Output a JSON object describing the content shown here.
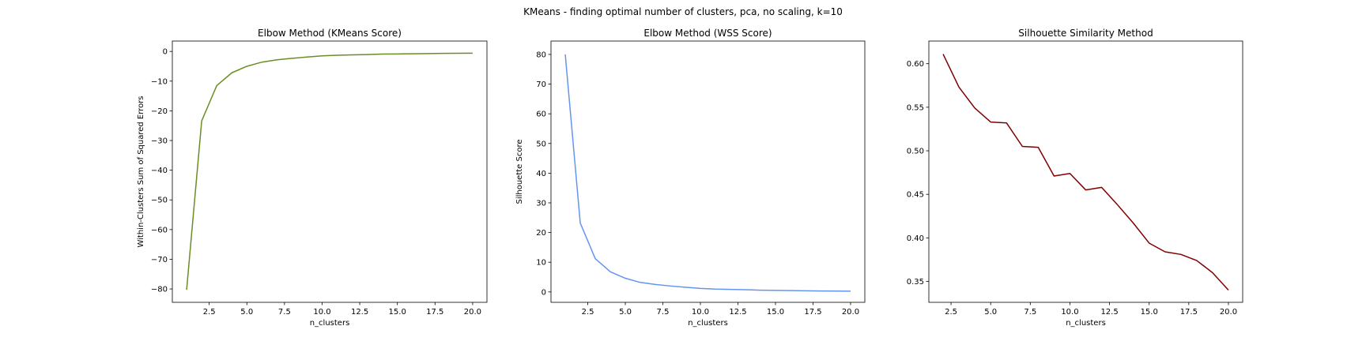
{
  "figure": {
    "suptitle": "KMeans - finding optimal number of clusters, pca, no scaling, k=10"
  },
  "chart_data": [
    {
      "type": "line",
      "title": "Elbow Method (KMeans Score)",
      "xlabel": "n_clusters",
      "ylabel": "Within-Clusters Sum of Squared Errors",
      "color": "#6b8e23",
      "xlim": [
        0.05,
        20.95
      ],
      "ylim": [
        -84.5,
        3.5
      ],
      "xticks": [
        2.5,
        5.0,
        7.5,
        10.0,
        12.5,
        15.0,
        17.5,
        20.0
      ],
      "xtick_labels": [
        "2.5",
        "5.0",
        "7.5",
        "10.0",
        "12.5",
        "15.0",
        "17.5",
        "20.0"
      ],
      "yticks": [
        0,
        -10,
        -20,
        -30,
        -40,
        -50,
        -60,
        -70,
        -80
      ],
      "ytick_labels": [
        "0",
        "−10",
        "−20",
        "−30",
        "−40",
        "−50",
        "−60",
        "−70",
        "−80"
      ],
      "x": [
        1,
        2,
        3,
        4,
        5,
        6,
        7,
        8,
        9,
        10,
        11,
        12,
        13,
        14,
        15,
        16,
        17,
        18,
        19,
        20
      ],
      "y": [
        -80.3,
        -23.4,
        -11.5,
        -7.2,
        -5.0,
        -3.6,
        -2.8,
        -2.3,
        -1.9,
        -1.5,
        -1.3,
        -1.15,
        -1.05,
        -0.9,
        -0.85,
        -0.78,
        -0.72,
        -0.67,
        -0.62,
        -0.58
      ]
    },
    {
      "type": "line",
      "title": "Elbow Method (WSS Score)",
      "xlabel": "n_clusters",
      "ylabel": "Silhouette Score",
      "color": "#6495ed",
      "xlim": [
        0.05,
        20.95
      ],
      "ylim": [
        -3.5,
        84.5
      ],
      "xticks": [
        2.5,
        5.0,
        7.5,
        10.0,
        12.5,
        15.0,
        17.5,
        20.0
      ],
      "xtick_labels": [
        "2.5",
        "5.0",
        "7.5",
        "10.0",
        "12.5",
        "15.0",
        "17.5",
        "20.0"
      ],
      "yticks": [
        0,
        10,
        20,
        30,
        40,
        50,
        60,
        70,
        80
      ],
      "ytick_labels": [
        "0",
        "10",
        "20",
        "30",
        "40",
        "50",
        "60",
        "70",
        "80"
      ],
      "x": [
        1,
        2,
        3,
        4,
        5,
        6,
        7,
        8,
        9,
        10,
        11,
        12,
        13,
        14,
        15,
        16,
        17,
        18,
        19,
        20
      ],
      "y": [
        80.0,
        23.2,
        11.2,
        6.8,
        4.6,
        3.2,
        2.5,
        2.0,
        1.6,
        1.2,
        0.95,
        0.85,
        0.75,
        0.6,
        0.52,
        0.45,
        0.38,
        0.32,
        0.28,
        0.25
      ]
    },
    {
      "type": "line",
      "title": "Silhouette Similarity Method",
      "xlabel": "n_clusters",
      "ylabel": "",
      "color": "#800000",
      "xlim": [
        1.1,
        20.9
      ],
      "ylim": [
        0.326,
        0.626
      ],
      "xticks": [
        2.5,
        5.0,
        7.5,
        10.0,
        12.5,
        15.0,
        17.5,
        20.0
      ],
      "xtick_labels": [
        "2.5",
        "5.0",
        "7.5",
        "10.0",
        "12.5",
        "15.0",
        "17.5",
        "20.0"
      ],
      "yticks": [
        0.35,
        0.4,
        0.45,
        0.5,
        0.55,
        0.6
      ],
      "ytick_labels": [
        "0.35",
        "0.40",
        "0.45",
        "0.50",
        "0.55",
        "0.60"
      ],
      "x": [
        2,
        3,
        4,
        5,
        6,
        7,
        8,
        9,
        10,
        11,
        12,
        13,
        14,
        15,
        16,
        17,
        18,
        19,
        20
      ],
      "y": [
        0.611,
        0.573,
        0.549,
        0.533,
        0.532,
        0.505,
        0.504,
        0.471,
        0.474,
        0.455,
        0.458,
        0.438,
        0.417,
        0.394,
        0.384,
        0.381,
        0.374,
        0.36,
        0.34
      ]
    }
  ]
}
